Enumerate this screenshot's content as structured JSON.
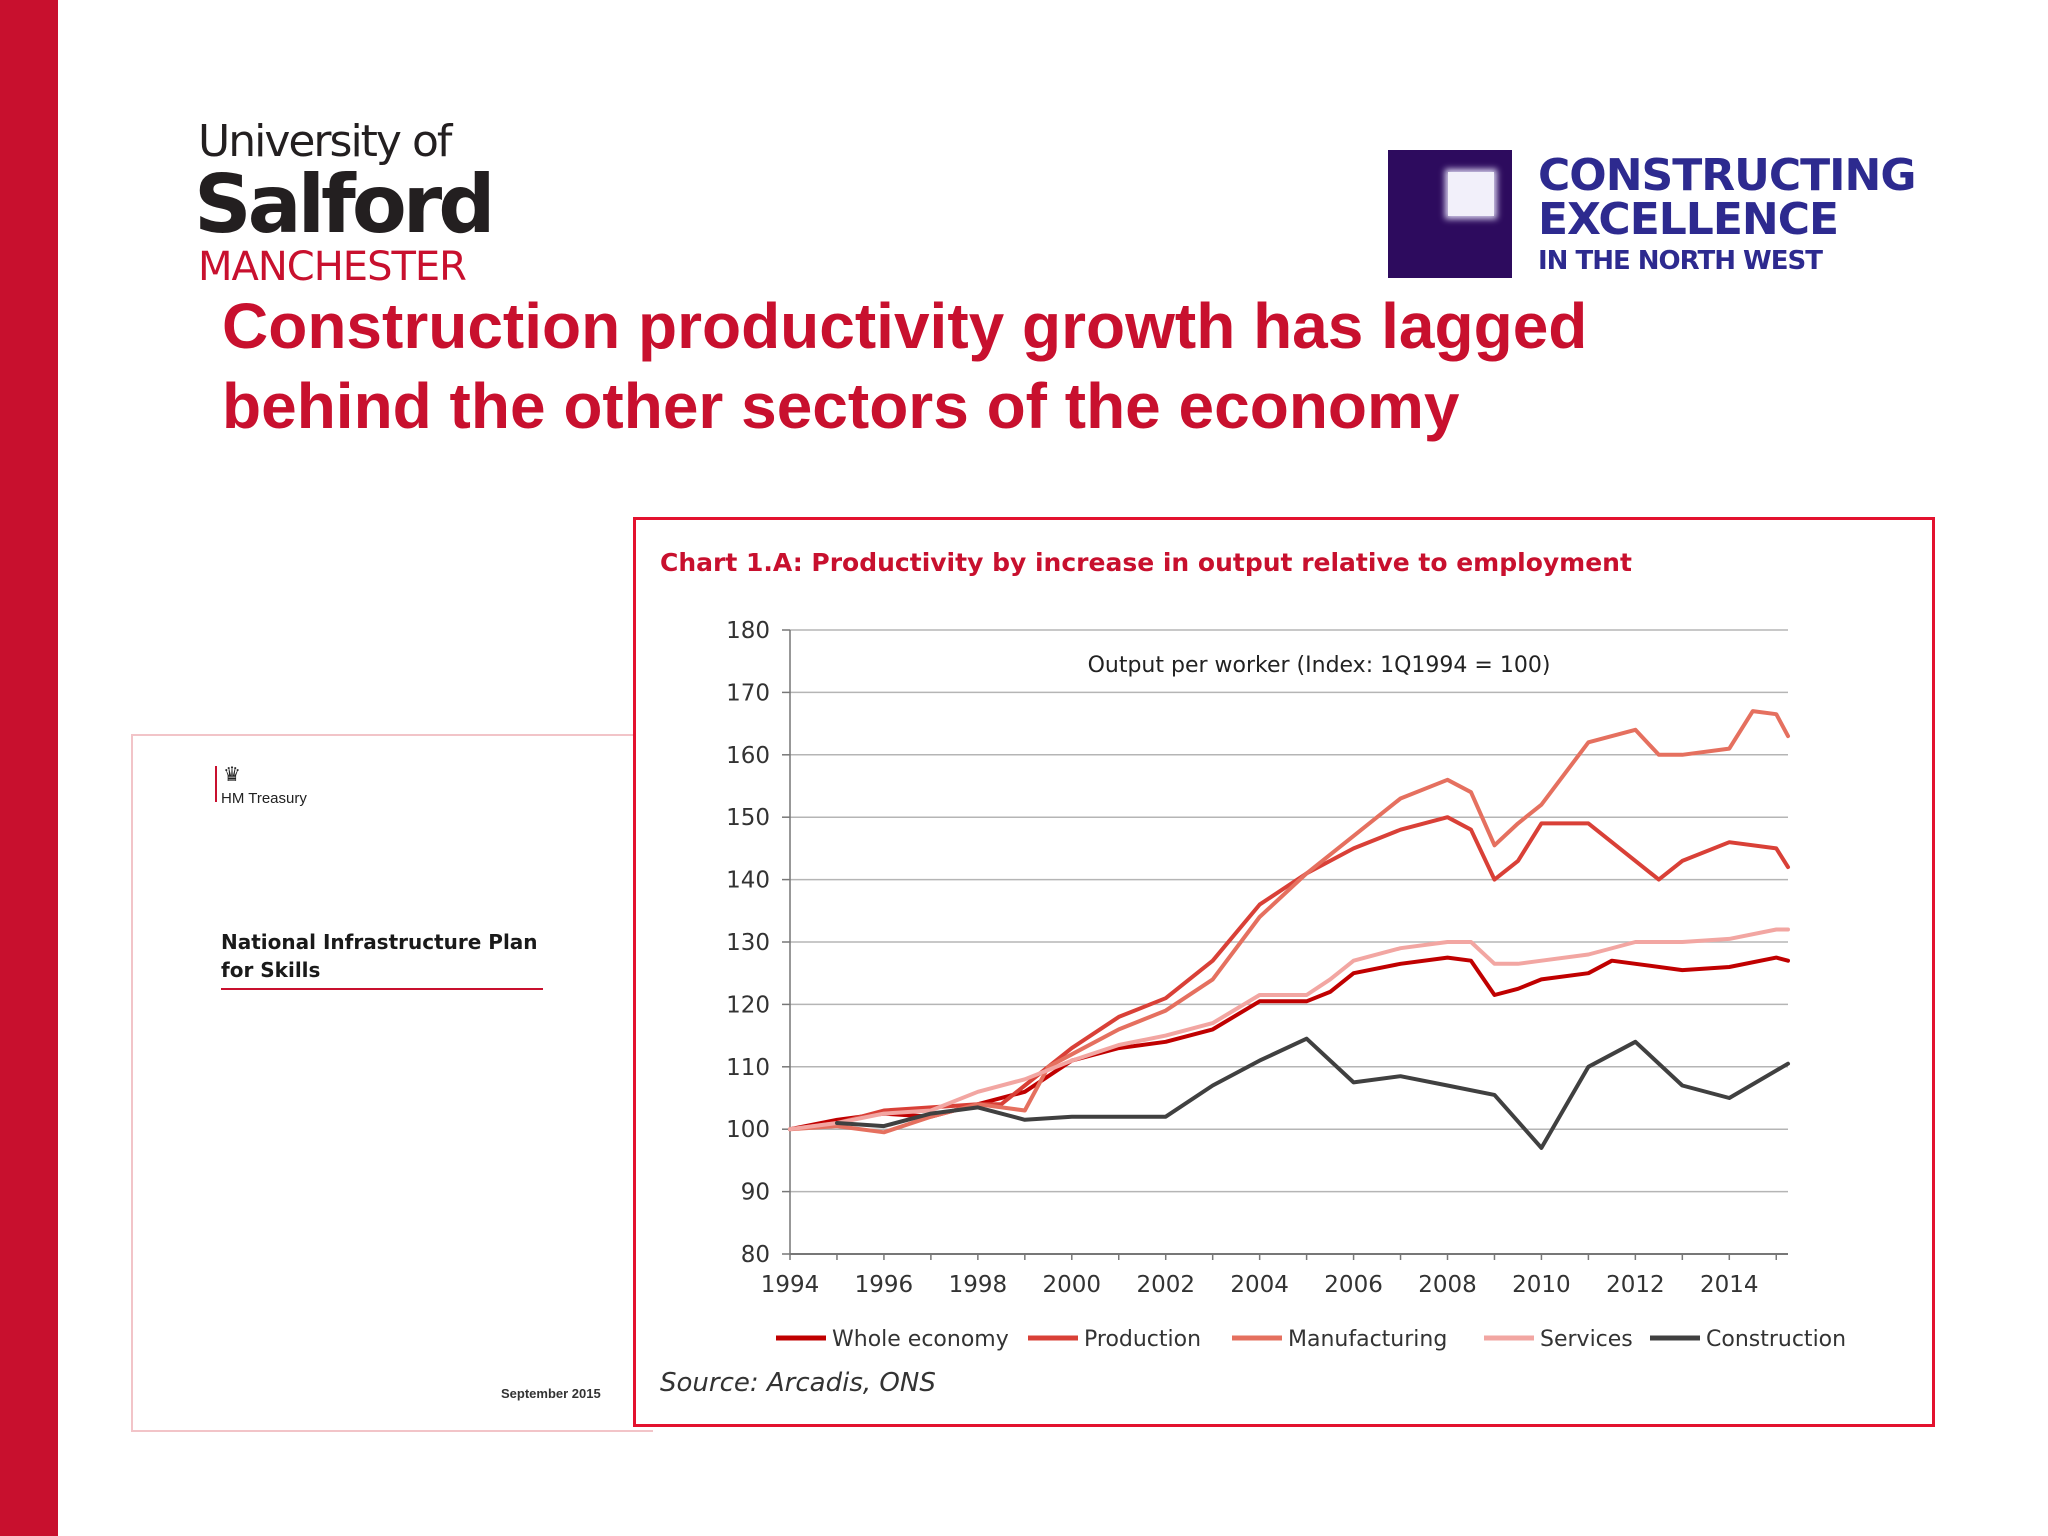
{
  "brand": {
    "accent": "#c8102e"
  },
  "university_logo": {
    "line1": "University of",
    "line2": "Salford",
    "line3": "MANCHESTER"
  },
  "partner_logo": {
    "line1": "CONSTRUCTING",
    "line2": "EXCELLENCE",
    "line3": "IN THE NORTH WEST",
    "color": "#2d0b5e"
  },
  "slide_title": "Construction productivity growth has lagged behind the other sectors of the economy",
  "document_cover": {
    "publisher": "HM Treasury",
    "title": "National Infrastructure Plan for Skills",
    "date": "September 2015",
    "crest_icon": "royal-crest-icon"
  },
  "chart_title": "Chart 1.A: Productivity by increase in output relative to employment",
  "source": "Source: Arcadis, ONS",
  "chart_data": {
    "type": "line",
    "subtitle": "Output per worker (Index: 1Q1994  = 100)",
    "xlabel": "",
    "ylabel": "",
    "xlim": [
      1994,
      2015.25
    ],
    "ylim": [
      80,
      180
    ],
    "x_ticks": [
      "1994",
      "1996",
      "1998",
      "2000",
      "2002",
      "2004",
      "2006",
      "2008",
      "2010",
      "2012",
      "2014"
    ],
    "y_ticks": [
      80,
      90,
      100,
      110,
      120,
      130,
      140,
      150,
      160,
      170,
      180
    ],
    "grid": "horizontal",
    "legend": "bottom",
    "series": [
      {
        "name": "Whole economy",
        "color": "#c00000",
        "x": [
          1994,
          1995,
          1996,
          1997,
          1998,
          1999,
          2000,
          2001,
          2002,
          2003,
          2004,
          2005,
          2005.5,
          2006,
          2007,
          2008,
          2008.5,
          2009,
          2009.5,
          2010,
          2011,
          2011.5,
          2012,
          2013,
          2014,
          2015,
          2015.25
        ],
        "y": [
          100,
          101.5,
          102.5,
          102,
          104,
          106,
          111,
          113,
          114,
          116,
          120.5,
          120.5,
          122,
          125,
          126.5,
          127.5,
          127,
          121.5,
          122.5,
          124,
          125,
          127,
          126.5,
          125.5,
          126,
          127.5,
          127
        ]
      },
      {
        "name": "Production",
        "color": "#d94037",
        "x": [
          1994,
          1995,
          1996,
          1997,
          1998,
          1998.5,
          1999,
          2000,
          2001,
          2002,
          2003,
          2004,
          2005,
          2006,
          2007,
          2008,
          2008.5,
          2009,
          2009.5,
          2010,
          2011,
          2012,
          2012.5,
          2013,
          2014,
          2015,
          2015.25
        ],
        "y": [
          100,
          101,
          103,
          103.5,
          104,
          104,
          107,
          113,
          118,
          121,
          127,
          136,
          141,
          145,
          148,
          150,
          148,
          140,
          143,
          149,
          149,
          143,
          140,
          143,
          146,
          145,
          142
        ]
      },
      {
        "name": "Manufacturing",
        "color": "#e5705f",
        "x": [
          1994,
          1995,
          1996,
          1997,
          1998,
          1999,
          1999.5,
          2000,
          2001,
          2002,
          2003,
          2004,
          2005,
          2006,
          2007,
          2008,
          2008.5,
          2009,
          2009.5,
          2010,
          2011,
          2012,
          2012.5,
          2013,
          2014,
          2014.5,
          2015,
          2015.25
        ],
        "y": [
          100,
          100.5,
          99.5,
          102,
          104,
          103,
          110,
          112,
          116,
          119,
          124,
          134,
          141,
          147,
          153,
          156,
          154,
          145.5,
          149,
          152,
          162,
          164,
          160,
          160,
          161,
          167,
          166.5,
          163
        ]
      },
      {
        "name": "Services",
        "color": "#f2a6a2",
        "x": [
          1994,
          1995,
          1996,
          1997,
          1998,
          1999,
          2000,
          2001,
          2002,
          2003,
          2004,
          2005,
          2005.5,
          2006,
          2007,
          2008,
          2008.5,
          2009,
          2009.5,
          2010,
          2011,
          2012,
          2013,
          2014,
          2015,
          2015.25
        ],
        "y": [
          100,
          101,
          102.5,
          103,
          106,
          108,
          111,
          113.5,
          115,
          117,
          121.5,
          121.5,
          124,
          127,
          129,
          130,
          130,
          126.5,
          126.5,
          127,
          128,
          130,
          130,
          130.5,
          132,
          132
        ]
      },
      {
        "name": "Construction",
        "color": "#404040",
        "x": [
          1995,
          1996,
          1997,
          1998,
          1999,
          2000,
          2001,
          2002,
          2003,
          2004,
          2005,
          2006,
          2007,
          2008,
          2009,
          2010,
          2011,
          2012,
          2013,
          2014,
          2015.25
        ],
        "y": [
          101,
          100.5,
          102.5,
          103.5,
          101.5,
          102,
          102,
          102,
          107,
          111,
          114.5,
          107.5,
          108.5,
          107,
          105.5,
          97,
          110,
          114,
          107,
          105,
          110.5
        ]
      }
    ]
  }
}
